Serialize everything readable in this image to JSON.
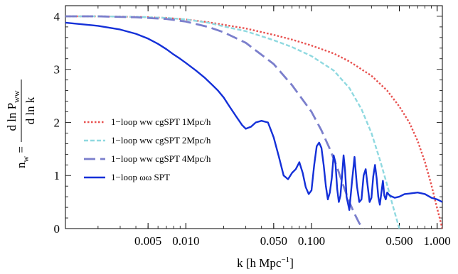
{
  "chart_data": {
    "type": "line",
    "xscale": "log",
    "xlim": [
      0.0011,
      1.1
    ],
    "ylim": [
      0,
      4.2
    ],
    "x_ticks": [
      {
        "value": 0.005,
        "label": "0.005"
      },
      {
        "value": 0.01,
        "label": "0.010"
      },
      {
        "value": 0.05,
        "label": "0.050"
      },
      {
        "value": 0.1,
        "label": "0.100"
      },
      {
        "value": 0.5,
        "label": "0.500"
      },
      {
        "value": 1.0,
        "label": "1.000"
      }
    ],
    "y_ticks": [
      {
        "value": 0,
        "label": "0"
      },
      {
        "value": 1,
        "label": "1"
      },
      {
        "value": 2,
        "label": "2"
      },
      {
        "value": 3,
        "label": "3"
      },
      {
        "value": 4,
        "label": "4"
      }
    ],
    "xlabel": {
      "pre": "k [h Mpc",
      "sup": "−1",
      "post": "]"
    },
    "ylabel": {
      "lhs": "n",
      "lhs_sub": "w",
      "eq": " =",
      "num": "d ln P",
      "num_sub": "ww",
      "den": "d ln k"
    },
    "legend_position": "center-left",
    "series": [
      {
        "name": "1−loop ww cgSPT 1Mpc/h",
        "color": "#e8514f",
        "style": "dotted",
        "x": [
          0.0011,
          0.002,
          0.004,
          0.007,
          0.01,
          0.015,
          0.02,
          0.03,
          0.05,
          0.07,
          0.1,
          0.15,
          0.2,
          0.3,
          0.4,
          0.5,
          0.6,
          0.7,
          0.8,
          0.9,
          1.0,
          1.1
        ],
        "y": [
          4.0,
          4.0,
          3.99,
          3.97,
          3.94,
          3.89,
          3.84,
          3.77,
          3.65,
          3.56,
          3.45,
          3.3,
          3.15,
          2.88,
          2.6,
          2.3,
          2.0,
          1.65,
          1.25,
          0.82,
          0.38,
          0.0
        ]
      },
      {
        "name": "1−loop ww cgSPT 2Mpc/h",
        "color": "#8fd9e0",
        "style": "dashed",
        "x": [
          0.0011,
          0.002,
          0.004,
          0.007,
          0.01,
          0.015,
          0.02,
          0.03,
          0.05,
          0.07,
          0.1,
          0.15,
          0.2,
          0.25,
          0.3,
          0.35,
          0.4,
          0.45,
          0.5
        ],
        "y": [
          4.0,
          4.0,
          3.99,
          3.97,
          3.94,
          3.88,
          3.81,
          3.72,
          3.55,
          3.42,
          3.25,
          2.98,
          2.65,
          2.25,
          1.8,
          1.3,
          0.82,
          0.38,
          0.0
        ]
      },
      {
        "name": "1−loop ww cgSPT 4Mpc/h",
        "color": "#7b7fcc",
        "style": "longdash",
        "x": [
          0.0011,
          0.002,
          0.004,
          0.007,
          0.01,
          0.015,
          0.02,
          0.03,
          0.05,
          0.07,
          0.1,
          0.12,
          0.14,
          0.16,
          0.18,
          0.2,
          0.22,
          0.24,
          0.26
        ],
        "y": [
          4.0,
          4.0,
          3.98,
          3.95,
          3.9,
          3.8,
          3.7,
          3.5,
          3.1,
          2.7,
          2.2,
          1.85,
          1.5,
          1.15,
          0.8,
          0.5,
          0.28,
          0.1,
          0.0
        ]
      },
      {
        "name": "1−loop ωω SPT",
        "color": "#1430d8",
        "style": "solid",
        "x": [
          0.0011,
          0.002,
          0.003,
          0.004,
          0.005,
          0.006,
          0.007,
          0.008,
          0.009,
          0.01,
          0.012,
          0.014,
          0.016,
          0.018,
          0.02,
          0.022,
          0.025,
          0.028,
          0.03,
          0.033,
          0.036,
          0.04,
          0.045,
          0.05,
          0.055,
          0.06,
          0.065,
          0.07,
          0.075,
          0.08,
          0.085,
          0.09,
          0.095,
          0.1,
          0.105,
          0.11,
          0.115,
          0.12,
          0.125,
          0.13,
          0.135,
          0.14,
          0.145,
          0.15,
          0.155,
          0.16,
          0.165,
          0.17,
          0.175,
          0.18,
          0.185,
          0.19,
          0.2,
          0.21,
          0.22,
          0.23,
          0.24,
          0.25,
          0.26,
          0.27,
          0.28,
          0.29,
          0.3,
          0.31,
          0.32,
          0.33,
          0.34,
          0.35,
          0.36,
          0.37,
          0.38,
          0.39,
          0.4,
          0.42,
          0.44,
          0.46,
          0.5,
          0.55,
          0.6,
          0.7,
          0.8,
          0.9,
          1.0,
          1.1
        ],
        "y": [
          3.88,
          3.82,
          3.75,
          3.67,
          3.58,
          3.48,
          3.38,
          3.28,
          3.2,
          3.12,
          2.98,
          2.85,
          2.72,
          2.6,
          2.47,
          2.32,
          2.12,
          1.95,
          1.88,
          1.92,
          2.0,
          2.03,
          2.0,
          1.72,
          1.35,
          1.0,
          0.93,
          1.05,
          1.12,
          1.25,
          1.05,
          0.78,
          0.65,
          0.72,
          1.2,
          1.55,
          1.62,
          1.52,
          1.2,
          0.8,
          0.55,
          0.68,
          0.95,
          1.38,
          1.25,
          0.75,
          0.5,
          0.62,
          1.0,
          1.38,
          1.1,
          0.6,
          0.35,
          0.88,
          1.35,
          0.8,
          0.5,
          0.55,
          1.0,
          1.12,
          0.8,
          0.5,
          0.58,
          0.98,
          1.2,
          0.95,
          0.6,
          0.45,
          0.68,
          0.9,
          0.62,
          0.55,
          0.68,
          0.62,
          0.6,
          0.58,
          0.6,
          0.65,
          0.66,
          0.68,
          0.65,
          0.58,
          0.55,
          0.5
        ]
      }
    ]
  }
}
